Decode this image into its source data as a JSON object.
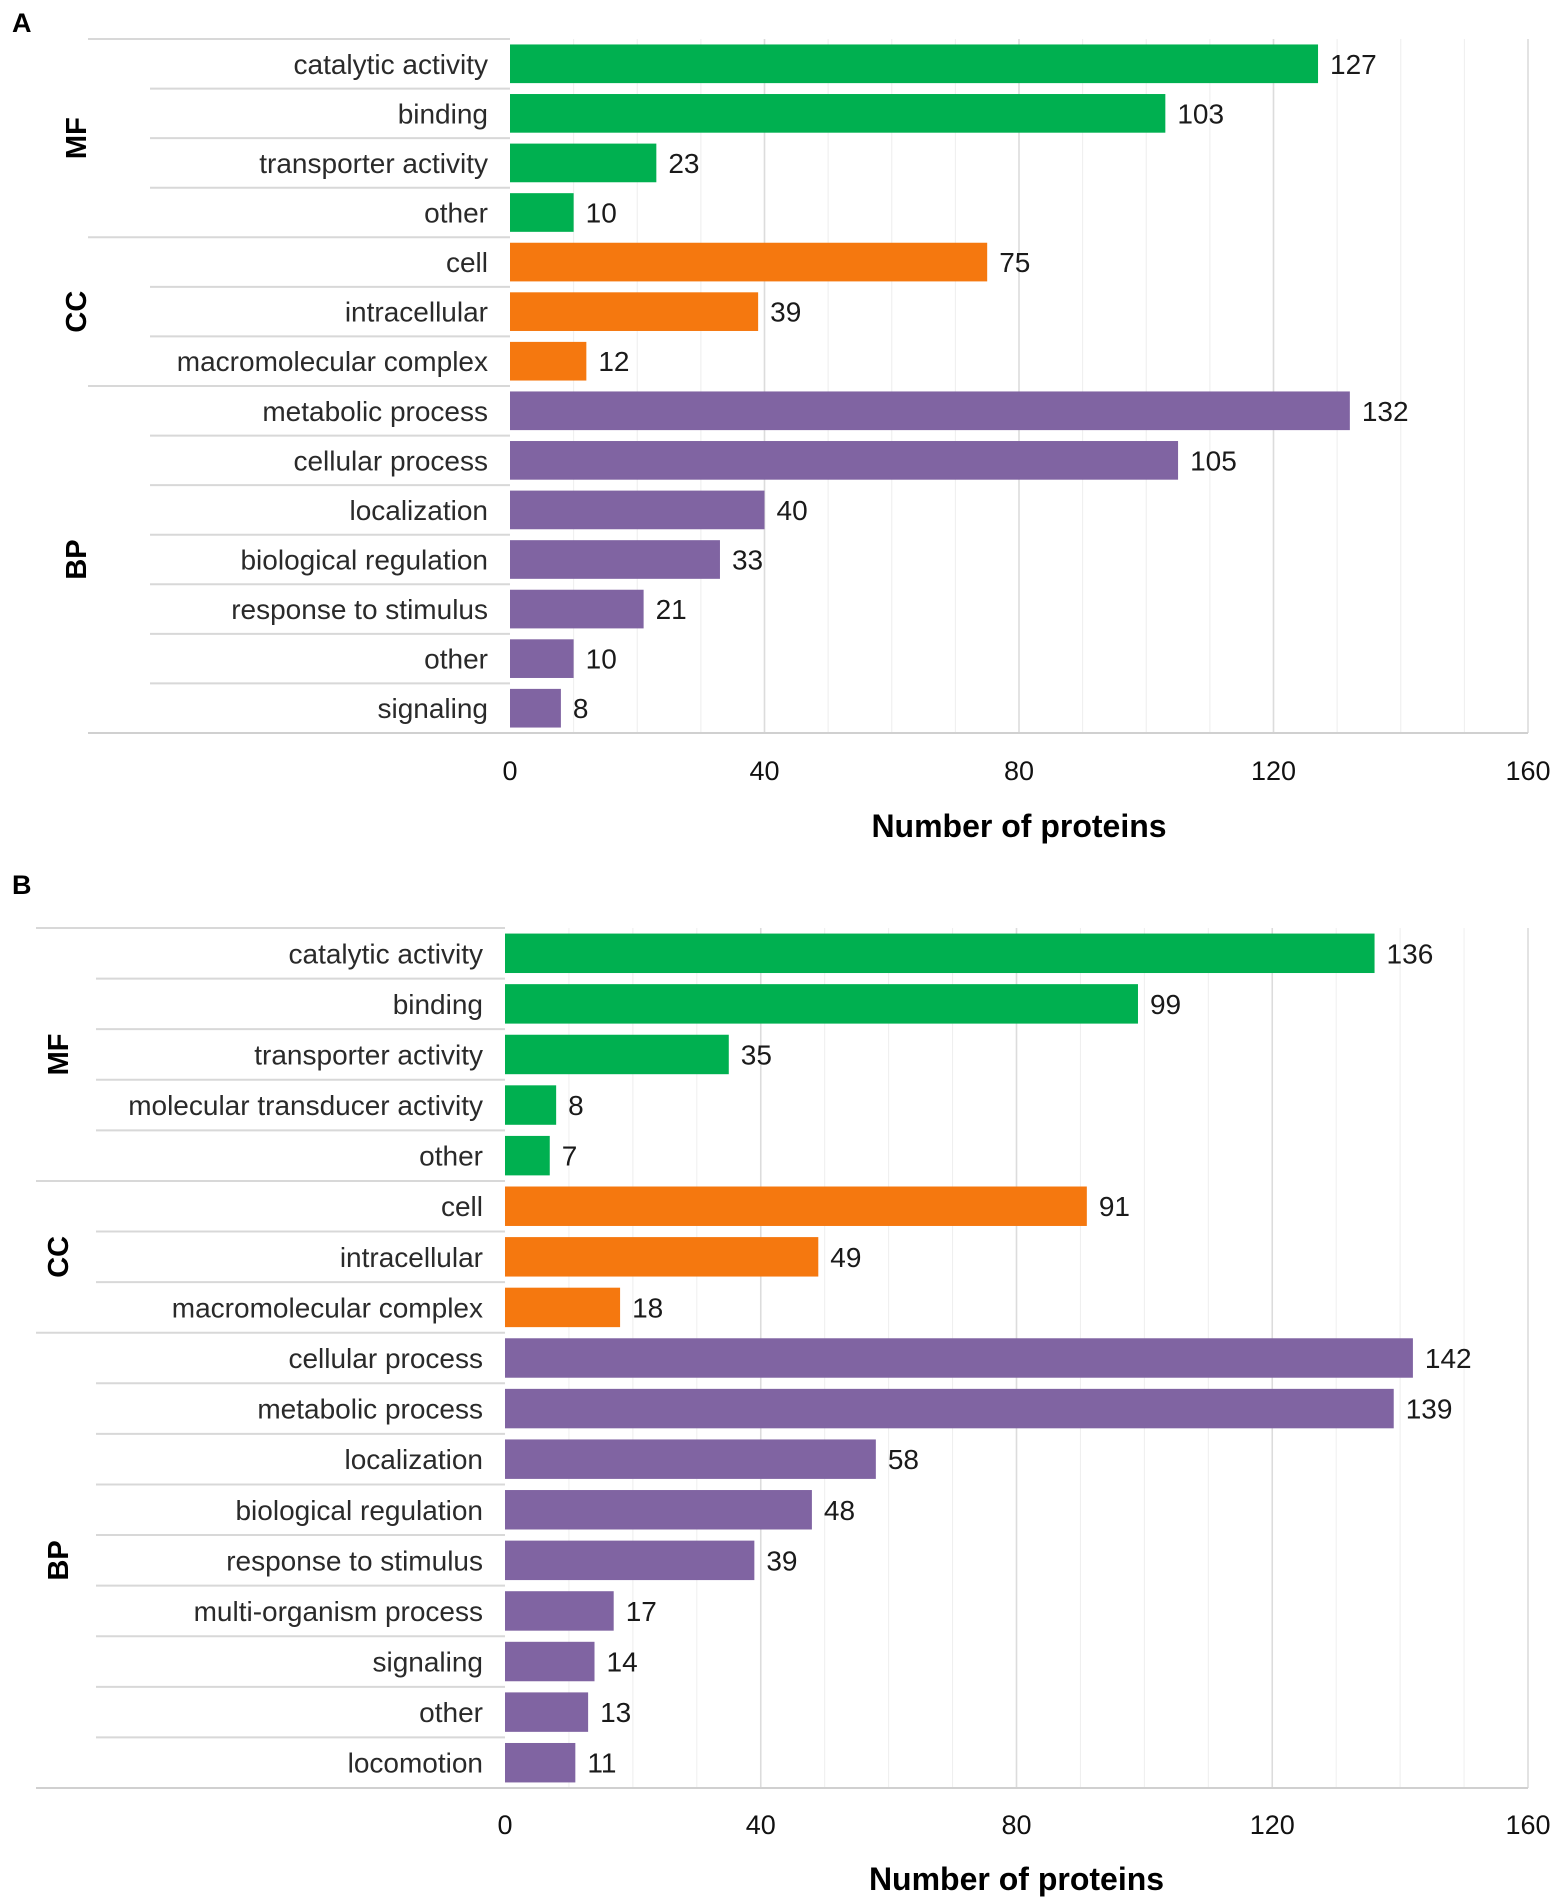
{
  "chart_data": [
    {
      "panel": "A",
      "type": "bar",
      "orientation": "horizontal",
      "xlabel": "Number of proteins",
      "ylabel": "",
      "xlim": [
        0,
        160
      ],
      "xticks": [
        0,
        40,
        80,
        120,
        160
      ],
      "grid": true,
      "groups": [
        {
          "name": "MF",
          "color": "#00b050",
          "categories": [
            {
              "label": "catalytic activity",
              "value": 127
            },
            {
              "label": "binding",
              "value": 103
            },
            {
              "label": "transporter activity",
              "value": 23
            },
            {
              "label": "other",
              "value": 10
            }
          ]
        },
        {
          "name": "CC",
          "color": "#f5780f",
          "categories": [
            {
              "label": "cell",
              "value": 75
            },
            {
              "label": "intracellular",
              "value": 39
            },
            {
              "label": "macromolecular complex",
              "value": 12
            }
          ]
        },
        {
          "name": "BP",
          "color": "#8064a2",
          "categories": [
            {
              "label": "metabolic process",
              "value": 132
            },
            {
              "label": "cellular process",
              "value": 105
            },
            {
              "label": "localization",
              "value": 40
            },
            {
              "label": "biological regulation",
              "value": 33
            },
            {
              "label": "response to stimulus",
              "value": 21
            },
            {
              "label": "other",
              "value": 10
            },
            {
              "label": "signaling",
              "value": 8
            }
          ]
        }
      ]
    },
    {
      "panel": "B",
      "type": "bar",
      "orientation": "horizontal",
      "xlabel": "Number of proteins",
      "ylabel": "",
      "xlim": [
        0,
        160
      ],
      "xticks": [
        0,
        40,
        80,
        120,
        160
      ],
      "grid": true,
      "groups": [
        {
          "name": "MF",
          "color": "#00b050",
          "categories": [
            {
              "label": "catalytic activity",
              "value": 136
            },
            {
              "label": "binding",
              "value": 99
            },
            {
              "label": "transporter activity",
              "value": 35
            },
            {
              "label": "molecular transducer activity",
              "value": 8
            },
            {
              "label": "other",
              "value": 7
            }
          ]
        },
        {
          "name": "CC",
          "color": "#f5780f",
          "categories": [
            {
              "label": "cell",
              "value": 91
            },
            {
              "label": "intracellular",
              "value": 49
            },
            {
              "label": "macromolecular complex",
              "value": 18
            }
          ]
        },
        {
          "name": "BP",
          "color": "#8064a2",
          "categories": [
            {
              "label": "cellular process",
              "value": 142
            },
            {
              "label": "metabolic process",
              "value": 139
            },
            {
              "label": "localization",
              "value": 58
            },
            {
              "label": "biological regulation",
              "value": 48
            },
            {
              "label": "response to stimulus",
              "value": 39
            },
            {
              "label": "multi-organism process",
              "value": 17
            },
            {
              "label": "signaling",
              "value": 14
            },
            {
              "label": "other",
              "value": 13
            },
            {
              "label": "locomotion",
              "value": 11
            }
          ]
        }
      ]
    }
  ]
}
